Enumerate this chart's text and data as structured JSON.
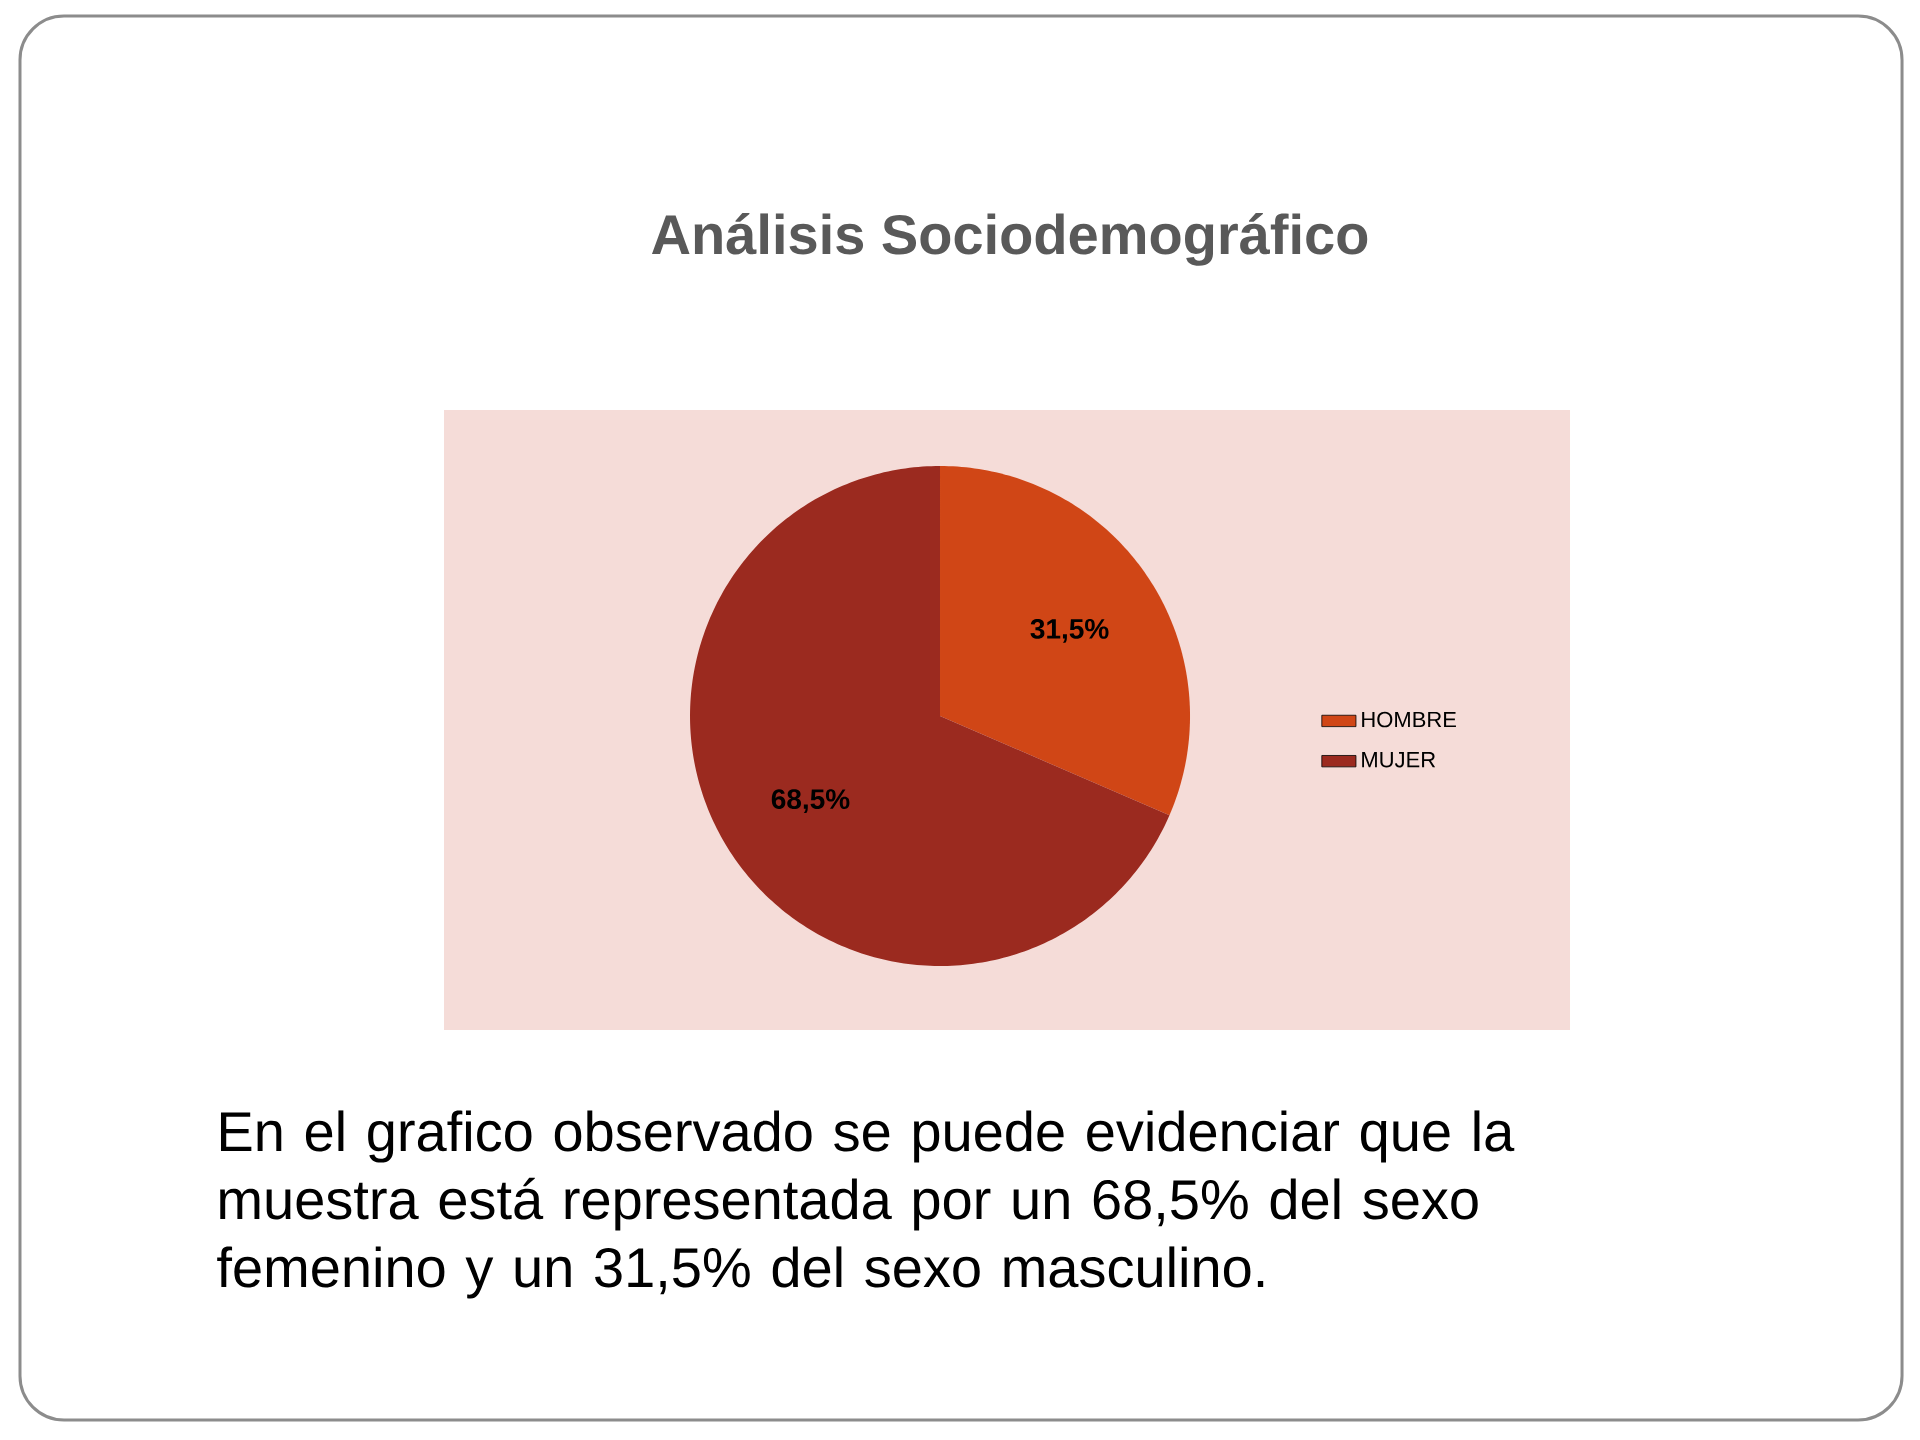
{
  "chart_data": {
    "type": "pie",
    "title": "Análisis Sociodemográfico",
    "categories": [
      "HOMBRE",
      "MUJER"
    ],
    "values": [
      31.5,
      68.5
    ],
    "colors": [
      "#d04616",
      "#9b2a1f"
    ],
    "value_labels": [
      "31,5%",
      "68,5%"
    ],
    "legend": "right",
    "annotations": [
      "En el grafico observado se puede evidenciar que la muestra está representada por un 68,5% del sexo femenino y un 31,5% del sexo masculino."
    ]
  }
}
